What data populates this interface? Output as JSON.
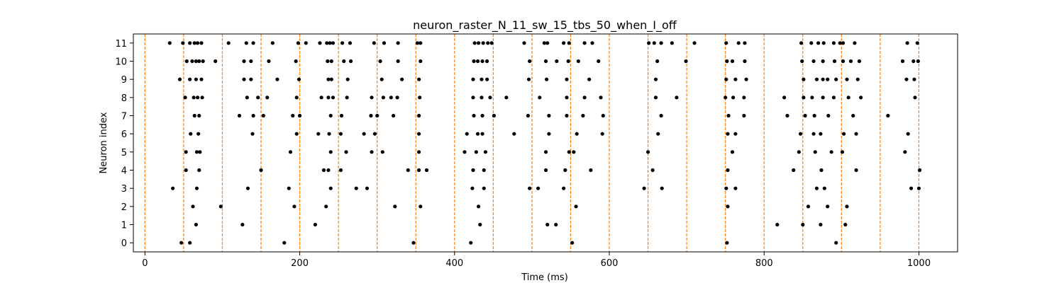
{
  "chart_data": {
    "type": "scatter",
    "title": "neuron_raster_N_11_sw_15_tbs_50_when_I_off",
    "xlabel": "Time (ms)",
    "ylabel": "Neuron index",
    "xlim": [
      -15,
      1050
    ],
    "ylim": [
      -0.5,
      11.5
    ],
    "x_ticks": [
      0,
      200,
      400,
      600,
      800,
      1000
    ],
    "y_ticks": [
      0,
      1,
      2,
      3,
      4,
      5,
      6,
      7,
      8,
      9,
      10,
      11
    ],
    "point_color": "#000000",
    "vline_color": "#ff7f0e",
    "vlines": [
      0,
      50,
      100,
      150,
      200,
      250,
      300,
      350,
      400,
      450,
      500,
      550,
      600,
      650,
      700,
      750,
      800,
      850,
      900,
      950,
      1000
    ],
    "series": [
      {
        "neuron": 0,
        "times": [
          47,
          58,
          180,
          347,
          421,
          552,
          752,
          893
        ]
      },
      {
        "neuron": 1,
        "times": [
          66,
          126,
          220,
          433,
          520,
          531,
          850,
          817,
          873,
          905
        ]
      },
      {
        "neuron": 2,
        "times": [
          62,
          98,
          193,
          234,
          323,
          356,
          431,
          557,
          753,
          857,
          882,
          907
        ]
      },
      {
        "neuron": 3,
        "times": [
          36,
          67,
          133,
          186,
          240,
          273,
          287,
          423,
          438,
          497,
          508,
          541,
          645,
          668,
          751,
          763,
          868,
          878,
          1000,
          990
        ]
      },
      {
        "neuron": 4,
        "times": [
          53,
          70,
          150,
          231,
          237,
          253,
          340,
          354,
          364,
          424,
          438,
          518,
          543,
          576,
          656,
          753,
          838,
          874,
          919,
          1001
        ]
      },
      {
        "neuron": 5,
        "times": [
          53,
          67,
          71,
          188,
          240,
          260,
          293,
          307,
          354,
          413,
          428,
          440,
          518,
          548,
          554,
          650,
          759,
          845,
          866,
          887,
          901,
          982
        ]
      },
      {
        "neuron": 6,
        "times": [
          59,
          69,
          139,
          196,
          224,
          238,
          253,
          283,
          297,
          354,
          416,
          430,
          436,
          477,
          522,
          558,
          591,
          663,
          753,
          763,
          847,
          864,
          873,
          903,
          919,
          986
        ]
      },
      {
        "neuron": 7,
        "times": [
          64,
          70,
          122,
          140,
          153,
          191,
          200,
          240,
          254,
          292,
          300,
          321,
          354,
          425,
          436,
          451,
          495,
          522,
          545,
          566,
          592,
          667,
          754,
          774,
          830,
          853,
          865,
          883,
          915,
          960
        ]
      },
      {
        "neuron": 8,
        "times": [
          52,
          63,
          68,
          74,
          132,
          146,
          158,
          196,
          228,
          237,
          243,
          261,
          293,
          308,
          318,
          326,
          355,
          424,
          435,
          446,
          467,
          510,
          545,
          568,
          589,
          660,
          687,
          750,
          760,
          774,
          826,
          851,
          862,
          876,
          890,
          909,
          925,
          995
        ]
      },
      {
        "neuron": 9,
        "times": [
          45,
          58,
          66,
          73,
          128,
          137,
          171,
          199,
          237,
          241,
          262,
          306,
          332,
          354,
          424,
          435,
          442,
          496,
          519,
          545,
          574,
          660,
          751,
          763,
          777,
          851,
          868,
          876,
          882,
          893,
          907,
          921,
          984,
          994
        ]
      },
      {
        "neuron": 10,
        "times": [
          54,
          61,
          66,
          70,
          75,
          91,
          128,
          137,
          160,
          195,
          236,
          241,
          257,
          266,
          304,
          327,
          356,
          425,
          430,
          436,
          442,
          497,
          518,
          532,
          547,
          560,
          586,
          662,
          699,
          752,
          759,
          775,
          849,
          864,
          876,
          891,
          902,
          912,
          923,
          979,
          993,
          999
        ]
      },
      {
        "neuron": 11,
        "times": [
          32,
          49,
          58,
          64,
          68,
          73,
          108,
          131,
          140,
          165,
          198,
          208,
          226,
          235,
          239,
          243,
          255,
          265,
          296,
          309,
          327,
          352,
          356,
          426,
          431,
          437,
          443,
          448,
          490,
          516,
          520,
          541,
          548,
          568,
          578,
          651,
          658,
          667,
          681,
          710,
          751,
          767,
          775,
          848,
          861,
          870,
          877,
          890,
          898,
          902,
          917,
          985,
          998
        ]
      }
    ]
  }
}
